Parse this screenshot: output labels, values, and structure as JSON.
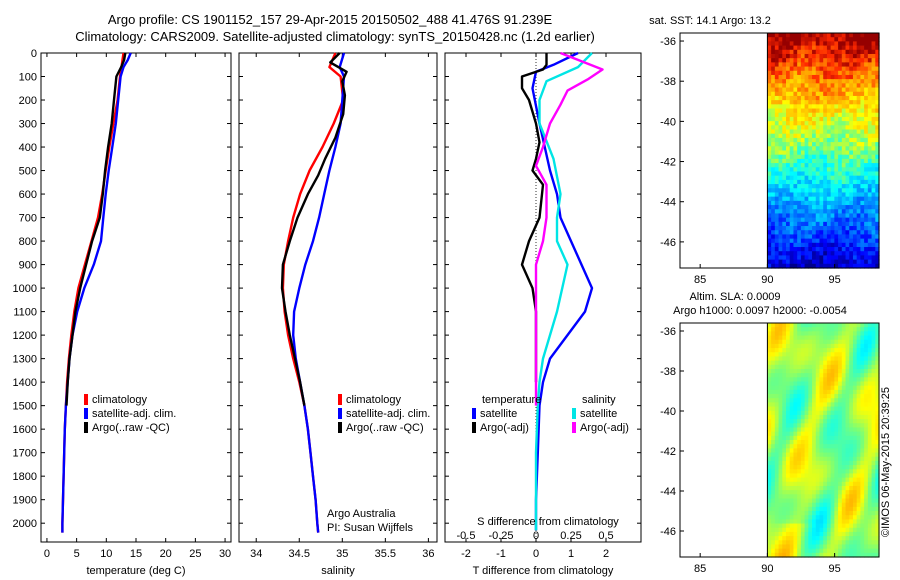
{
  "title_line1": "Argo profile: CS 1901152_157 29-Apr-2015 20150502_488 41.476S 91.239E",
  "title_line2": "Climatology: CARS2009. Satellite-adjusted climatology: synTS_20150428.nc (1.2d earlier)",
  "credit_line1": "Argo Australia",
  "credit_line2": "PI: Susan Wijffels",
  "stamp": "©IMOS 06-May-2015 20:39:25",
  "colors": {
    "climatology": "#ff0000",
    "satellite": "#0000ff",
    "argo": "#000000",
    "sat_diff_s": "#00e5e5",
    "argo_diff_s": "#ff00ff"
  },
  "chart_data": [
    {
      "type": "line",
      "id": "temp",
      "xlabel": "temperature (deg C)",
      "ylabel": "",
      "xlim": [
        -1,
        31
      ],
      "ylim": [
        2080,
        0
      ],
      "xticks": [
        0,
        5,
        10,
        15,
        20,
        25,
        30
      ],
      "yticks": [
        0,
        100,
        200,
        300,
        400,
        500,
        600,
        700,
        800,
        900,
        1000,
        1100,
        1200,
        1300,
        1400,
        1500,
        1600,
        1700,
        1800,
        1900,
        2000
      ],
      "legend": [
        "climatology",
        "satellite-adj. clim.",
        "Argo(..raw -QC)"
      ],
      "series": [
        {
          "name": "climatology",
          "color": "#ff0000",
          "points": [
            [
              12.9,
              0
            ],
            [
              12.6,
              50
            ],
            [
              12.3,
              100
            ],
            [
              11.9,
              200
            ],
            [
              11.2,
              300
            ],
            [
              10.5,
              400
            ],
            [
              9.9,
              500
            ],
            [
              9.3,
              600
            ],
            [
              8.6,
              700
            ],
            [
              7.5,
              800
            ],
            [
              6.4,
              900
            ],
            [
              5.3,
              1000
            ],
            [
              4.6,
              1100
            ],
            [
              4.1,
              1200
            ],
            [
              3.7,
              1300
            ],
            [
              3.4,
              1400
            ],
            [
              3.2,
              1500
            ],
            [
              3.0,
              1600
            ],
            [
              2.9,
              1700
            ],
            [
              2.8,
              1800
            ],
            [
              2.7,
              1900
            ],
            [
              2.6,
              2000
            ],
            [
              2.6,
              2040
            ]
          ]
        },
        {
          "name": "satellite-adj. clim.",
          "color": "#0000ff",
          "points": [
            [
              14.1,
              0
            ],
            [
              13.6,
              30
            ],
            [
              12.9,
              60
            ],
            [
              12.4,
              100
            ],
            [
              12.0,
              200
            ],
            [
              11.6,
              300
            ],
            [
              11.0,
              400
            ],
            [
              10.4,
              500
            ],
            [
              9.9,
              600
            ],
            [
              9.5,
              700
            ],
            [
              9.1,
              800
            ],
            [
              7.9,
              900
            ],
            [
              6.3,
              1000
            ],
            [
              5.1,
              1100
            ],
            [
              4.3,
              1200
            ],
            [
              3.8,
              1300
            ],
            [
              3.5,
              1400
            ],
            [
              3.2,
              1500
            ],
            [
              3.0,
              1600
            ],
            [
              2.9,
              1700
            ],
            [
              2.8,
              1800
            ],
            [
              2.7,
              1900
            ],
            [
              2.6,
              2000
            ],
            [
              2.6,
              2040
            ]
          ]
        },
        {
          "name": "Argo(..raw -QC)",
          "color": "#000000",
          "points": [
            [
              13.2,
              0
            ],
            [
              13.0,
              30
            ],
            [
              12.5,
              60
            ],
            [
              11.7,
              100
            ],
            [
              11.3,
              200
            ],
            [
              10.9,
              300
            ],
            [
              10.3,
              400
            ],
            [
              9.8,
              500
            ],
            [
              9.4,
              600
            ],
            [
              8.9,
              700
            ],
            [
              7.6,
              800
            ],
            [
              6.6,
              900
            ],
            [
              5.6,
              1000
            ],
            [
              4.8,
              1100
            ],
            [
              4.3,
              1200
            ],
            [
              3.8,
              1300
            ],
            [
              3.5,
              1400
            ],
            [
              3.3,
              1500
            ]
          ]
        }
      ]
    },
    {
      "type": "line",
      "id": "sal",
      "xlabel": "salinity",
      "ylabel": "",
      "xlim": [
        33.8,
        36.1
      ],
      "ylim": [
        2080,
        0
      ],
      "xticks": [
        34,
        34.5,
        35,
        35.5,
        36
      ],
      "legend": [
        "climatology",
        "satellite-adj. clim.",
        "Argo(..raw -QC)"
      ],
      "series": [
        {
          "name": "climatology",
          "color": "#ff0000",
          "points": [
            [
              34.92,
              0
            ],
            [
              34.85,
              60
            ],
            [
              34.98,
              100
            ],
            [
              35.01,
              200
            ],
            [
              34.9,
              300
            ],
            [
              34.77,
              400
            ],
            [
              34.62,
              500
            ],
            [
              34.51,
              600
            ],
            [
              34.43,
              700
            ],
            [
              34.37,
              800
            ],
            [
              34.32,
              900
            ],
            [
              34.31,
              1000
            ],
            [
              34.33,
              1100
            ],
            [
              34.37,
              1200
            ],
            [
              34.43,
              1300
            ],
            [
              34.5,
              1400
            ],
            [
              34.56,
              1500
            ],
            [
              34.6,
              1600
            ],
            [
              34.63,
              1700
            ],
            [
              34.66,
              1800
            ],
            [
              34.69,
              1900
            ],
            [
              34.71,
              2000
            ],
            [
              34.72,
              2040
            ]
          ]
        },
        {
          "name": "satellite-adj. clim.",
          "color": "#0000ff",
          "points": [
            [
              35.02,
              0
            ],
            [
              34.97,
              60
            ],
            [
              35.02,
              100
            ],
            [
              35.0,
              200
            ],
            [
              34.98,
              300
            ],
            [
              34.92,
              400
            ],
            [
              34.85,
              500
            ],
            [
              34.79,
              600
            ],
            [
              34.73,
              700
            ],
            [
              34.66,
              800
            ],
            [
              34.57,
              900
            ],
            [
              34.5,
              1000
            ],
            [
              34.44,
              1100
            ],
            [
              34.43,
              1200
            ],
            [
              34.46,
              1300
            ],
            [
              34.51,
              1400
            ],
            [
              34.56,
              1500
            ],
            [
              34.6,
              1600
            ],
            [
              34.63,
              1700
            ],
            [
              34.66,
              1800
            ],
            [
              34.69,
              1900
            ],
            [
              34.71,
              2000
            ],
            [
              34.72,
              2040
            ]
          ]
        },
        {
          "name": "Argo(..raw -QC)",
          "color": "#000000",
          "points": [
            [
              34.97,
              0
            ],
            [
              34.86,
              40
            ],
            [
              35.05,
              80
            ],
            [
              35.0,
              120
            ],
            [
              35.03,
              180
            ],
            [
              35.01,
              260
            ],
            [
              34.92,
              360
            ],
            [
              34.8,
              450
            ],
            [
              34.72,
              520
            ],
            [
              34.6,
              600
            ],
            [
              34.48,
              700
            ],
            [
              34.39,
              800
            ],
            [
              34.31,
              900
            ],
            [
              34.3,
              1000
            ],
            [
              34.34,
              1100
            ],
            [
              34.39,
              1200
            ],
            [
              34.45,
              1300
            ],
            [
              34.51,
              1400
            ],
            [
              34.56,
              1500
            ]
          ]
        }
      ]
    },
    {
      "type": "line",
      "id": "diff",
      "xlabel": "T difference from climatology",
      "xlabel2": "S difference from climatology",
      "xlim": [
        -2.6,
        3.0
      ],
      "ylim": [
        2080,
        0
      ],
      "xticks": [
        -2,
        -1,
        0,
        1,
        2
      ],
      "x2ticks": [
        -0.5,
        -0.25,
        0,
        0.25,
        0.5
      ],
      "x2labels": [
        "-0.5",
        "-0.25",
        "0",
        "0.25",
        "0.5"
      ],
      "legend_temperature": "temperature",
      "legend_salinity": "salinity",
      "legend_items": [
        "satellite",
        "Argo(-adj)",
        "satellite",
        "Argo(-adj)"
      ],
      "series": [
        {
          "name": "satellite T",
          "color": "#0000ff",
          "points": [
            [
              1.2,
              0
            ],
            [
              0.5,
              50
            ],
            [
              0.0,
              80
            ],
            [
              -0.1,
              150
            ],
            [
              0.1,
              300
            ],
            [
              0.4,
              500
            ],
            [
              0.6,
              600
            ],
            [
              0.7,
              700
            ],
            [
              1.3,
              900
            ],
            [
              1.6,
              1000
            ],
            [
              1.4,
              1100
            ],
            [
              0.9,
              1200
            ],
            [
              0.4,
              1300
            ],
            [
              0.2,
              1400
            ],
            [
              0.1,
              1500
            ],
            [
              0.05,
              1700
            ],
            [
              0.0,
              1900
            ],
            [
              0.0,
              2030
            ]
          ]
        },
        {
          "name": "Argo T",
          "color": "#000000",
          "points": [
            [
              0.3,
              0
            ],
            [
              0.3,
              50
            ],
            [
              0.2,
              70
            ],
            [
              -0.4,
              100
            ],
            [
              -0.4,
              150
            ],
            [
              -0.2,
              200
            ],
            [
              0.0,
              300
            ],
            [
              0.1,
              380
            ],
            [
              0.0,
              450
            ],
            [
              -0.1,
              500
            ],
            [
              0.2,
              560
            ],
            [
              0.1,
              700
            ],
            [
              -0.2,
              800
            ],
            [
              -0.4,
              900
            ],
            [
              -0.1,
              1000
            ],
            [
              0.0,
              1100
            ],
            [
              0.0,
              1300
            ],
            [
              0.0,
              1400
            ]
          ]
        },
        {
          "name": "satellite S",
          "color": "#00e5e5",
          "points": [
            [
              1.6,
              0
            ],
            [
              1.2,
              60
            ],
            [
              0.3,
              120
            ],
            [
              0.1,
              200
            ],
            [
              0.1,
              300
            ],
            [
              0.5,
              450
            ],
            [
              0.7,
              600
            ],
            [
              0.6,
              700
            ],
            [
              0.6,
              800
            ],
            [
              0.9,
              900
            ],
            [
              0.6,
              1100
            ],
            [
              0.4,
              1200
            ],
            [
              0.2,
              1300
            ],
            [
              0.1,
              1400
            ],
            [
              0.05,
              1500
            ],
            [
              0.0,
              1700
            ],
            [
              0.0,
              1900
            ],
            [
              0.0,
              2030
            ]
          ]
        },
        {
          "name": "Argo S",
          "color": "#ff00ff",
          "points": [
            [
              0.7,
              0
            ],
            [
              1.9,
              70
            ],
            [
              1.5,
              110
            ],
            [
              0.9,
              160
            ],
            [
              0.7,
              220
            ],
            [
              0.4,
              300
            ],
            [
              0.2,
              400
            ],
            [
              0.0,
              480
            ],
            [
              0.3,
              560
            ],
            [
              0.3,
              700
            ],
            [
              0.2,
              800
            ],
            [
              0.0,
              900
            ],
            [
              0.0,
              1000
            ],
            [
              0.0,
              1200
            ],
            [
              0.0,
              1400
            ],
            [
              0.0,
              1500
            ]
          ]
        }
      ]
    },
    {
      "type": "heatmap",
      "id": "sst",
      "title": "sat. SST: 14.1 Argo: 13.2",
      "xticks": [
        85,
        90,
        95
      ],
      "yticks": [
        -36,
        -38,
        -40,
        -42,
        -44,
        -46
      ],
      "xlim": [
        83.5,
        98.3
      ],
      "ylim": [
        -47.3,
        -35.6
      ]
    },
    {
      "type": "heatmap",
      "id": "sla",
      "title_line1": "Altim. SLA: 0.0009",
      "title_line2": "Argo h1000: 0.0097 h2000: -0.0054",
      "xticks": [
        85,
        90,
        95
      ],
      "yticks": [
        -36,
        -38,
        -40,
        -42,
        -44,
        -46
      ],
      "xlim": [
        83.5,
        98.3
      ],
      "ylim": [
        -47.3,
        -35.6
      ]
    }
  ]
}
